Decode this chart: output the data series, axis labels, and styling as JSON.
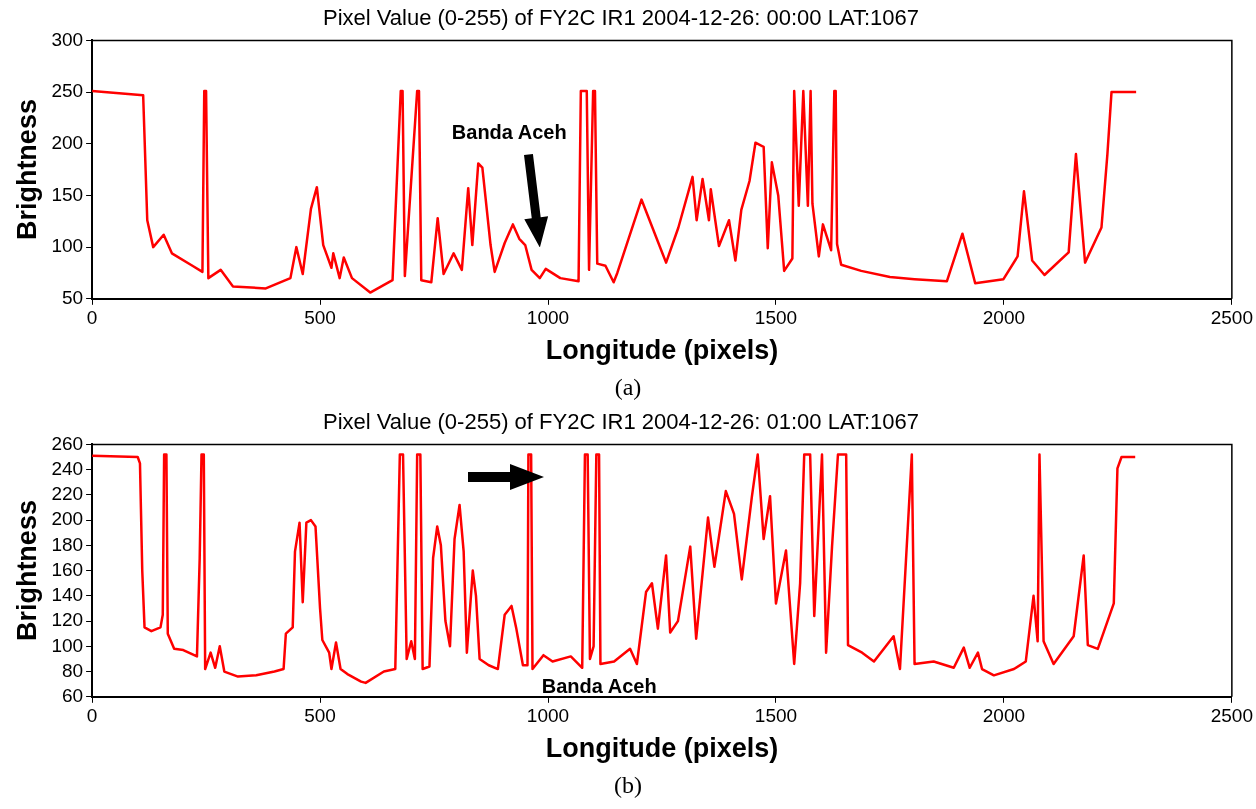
{
  "chart_data": [
    {
      "type": "line",
      "title": "Pixel Value (0-255) of FY2C IR1 2004-12-26: 00:00 LAT:1067",
      "xlabel": "Longitude (pixels)",
      "ylabel": "Brightness",
      "xlim": [
        0,
        2500
      ],
      "xticks": [
        0,
        500,
        1000,
        1500,
        2000,
        2500
      ],
      "ylim": [
        50,
        300
      ],
      "yticks": [
        50,
        100,
        150,
        200,
        250,
        300
      ],
      "grid": false,
      "marker": "none",
      "annotations": [
        "Banda Aceh",
        "(a)"
      ],
      "series": [
        {
          "color": "#ff0000",
          "x": [
            0,
            112,
            121,
            134,
            157,
            175,
            220,
            242,
            246,
            250,
            255,
            282,
            309,
            381,
            435,
            448,
            462,
            480,
            493,
            507,
            525,
            529,
            543,
            552,
            570,
            610,
            659,
            677,
            681,
            686,
            713,
            717,
            722,
            744,
            758,
            771,
            793,
            811,
            825,
            834,
            847,
            856,
            874,
            883,
            905,
            923,
            937,
            950,
            964,
            982,
            995,
            1027,
            1067,
            1072,
            1085,
            1090,
            1099,
            1103,
            1108,
            1126,
            1144,
            1152,
            1205,
            1259,
            1286,
            1317,
            1326,
            1339,
            1353,
            1357,
            1375,
            1397,
            1411,
            1424,
            1442,
            1455,
            1473,
            1482,
            1491,
            1505,
            1518,
            1536,
            1540,
            1550,
            1560,
            1570,
            1576,
            1580,
            1594,
            1603,
            1621,
            1628,
            1631,
            1634,
            1643,
            1687,
            1750,
            1804,
            1875,
            1909,
            1937,
            1999,
            2030,
            2044,
            2062,
            2089,
            2142,
            2158,
            2178,
            2214,
            2227,
            2236,
            2290
          ],
          "values": [
            251,
            247,
            126,
            100,
            112,
            94,
            82,
            76,
            251,
            251,
            70,
            78,
            62,
            60,
            70,
            100,
            74,
            137,
            158,
            102,
            80,
            94,
            70,
            90,
            70,
            56,
            68,
            251,
            251,
            72,
            251,
            251,
            68,
            66,
            128,
            74,
            94,
            78,
            157,
            102,
            181,
            177,
            102,
            76,
            104,
            122,
            108,
            102,
            78,
            70,
            79,
            70,
            67,
            251,
            251,
            78,
            251,
            251,
            84,
            82,
            66,
            75,
            146,
            85,
            119,
            168,
            126,
            166,
            126,
            156,
            101,
            126,
            87,
            136,
            164,
            201,
            197,
            99,
            182,
            150,
            77,
            89,
            251,
            140,
            251,
            140,
            251,
            142,
            91,
            122,
            97,
            251,
            251,
            103,
            83,
            77,
            71,
            69,
            67,
            113,
            65,
            69,
            91,
            154,
            87,
            73,
            95,
            190,
            85,
            119,
            190,
            250,
            250
          ]
        }
      ]
    },
    {
      "type": "line",
      "title": "Pixel Value (0-255) of FY2C IR1 2004-12-26: 01:00 LAT:1067",
      "xlabel": "Longitude (pixels)",
      "ylabel": "Brightness",
      "xlim": [
        0,
        2500
      ],
      "xticks": [
        0,
        500,
        1000,
        1500,
        2000,
        2500
      ],
      "ylim": [
        60,
        260
      ],
      "yticks": [
        60,
        80,
        100,
        120,
        140,
        160,
        180,
        200,
        220,
        240,
        260
      ],
      "grid": false,
      "marker": "none",
      "annotations": [
        {
          "text": "Banda Aceh",
          "x": 960,
          "y": 83
        },
        "(b)"
      ],
      "series": [
        {
          "color": "#ff0000",
          "x": [
            0,
            100,
            105,
            110,
            115,
            130,
            150,
            155,
            158,
            163,
            166,
            180,
            200,
            230,
            236,
            240,
            245,
            248,
            260,
            270,
            280,
            290,
            320,
            360,
            400,
            420,
            425,
            440,
            445,
            455,
            462,
            470,
            480,
            490,
            500,
            505,
            520,
            525,
            535,
            545,
            560,
            590,
            600,
            640,
            665,
            675,
            682,
            690,
            700,
            708,
            713,
            720,
            725,
            740,
            748,
            757,
            765,
            775,
            785,
            795,
            806,
            815,
            822,
            835,
            842,
            850,
            870,
            890,
            905,
            920,
            930,
            945,
            955,
            957,
            963,
            966,
            990,
            1010,
            1050,
            1075,
            1081,
            1087,
            1092,
            1100,
            1106,
            1112,
            1115,
            1145,
            1180,
            1195,
            1215,
            1228,
            1241,
            1259,
            1268,
            1285,
            1312,
            1325,
            1351,
            1365,
            1390,
            1408,
            1425,
            1447,
            1460,
            1473,
            1487,
            1500,
            1522,
            1540,
            1553,
            1562,
            1575,
            1584,
            1601,
            1610,
            1623,
            1636,
            1654,
            1658,
            1689,
            1715,
            1758,
            1772,
            1798,
            1804,
            1846,
            1890,
            1912,
            1925,
            1943,
            1952,
            1978,
            2022,
            2048,
            2065,
            2074,
            2078,
            2087,
            2109,
            2153,
            2175,
            2184,
            2206,
            2241,
            2249,
            2258,
            2288
          ],
          "values": [
            251,
            250,
            245,
            160,
            115,
            112,
            115,
            125,
            252,
            252,
            110,
            98,
            97,
            92,
            170,
            252,
            252,
            82,
            95,
            83,
            100,
            80,
            76,
            77,
            80,
            82,
            110,
            115,
            175,
            198,
            135,
            198,
            200,
            195,
            130,
            105,
            95,
            82,
            103,
            82,
            78,
            72,
            71,
            80,
            82,
            252,
            252,
            90,
            104,
            90,
            252,
            252,
            82,
            84,
            170,
            195,
            180,
            120,
            100,
            185,
            212,
            175,
            95,
            160,
            140,
            90,
            85,
            82,
            125,
            132,
            115,
            85,
            85,
            252,
            252,
            82,
            93,
            88,
            92,
            83,
            252,
            252,
            90,
            100,
            252,
            252,
            86,
            88,
            98,
            86,
            143,
            150,
            114,
            172,
            111,
            120,
            179,
            106,
            202,
            163,
            223,
            205,
            153,
            218,
            252,
            185,
            219,
            134,
            176,
            86,
            150,
            252,
            252,
            124,
            252,
            95,
            179,
            252,
            252,
            101,
            95,
            88,
            108,
            82,
            252,
            86,
            88,
            83,
            99,
            83,
            95,
            82,
            77,
            82,
            88,
            140,
            104,
            252,
            104,
            86,
            108,
            172,
            101,
            98,
            134,
            241,
            250,
            250
          ]
        }
      ]
    }
  ]
}
